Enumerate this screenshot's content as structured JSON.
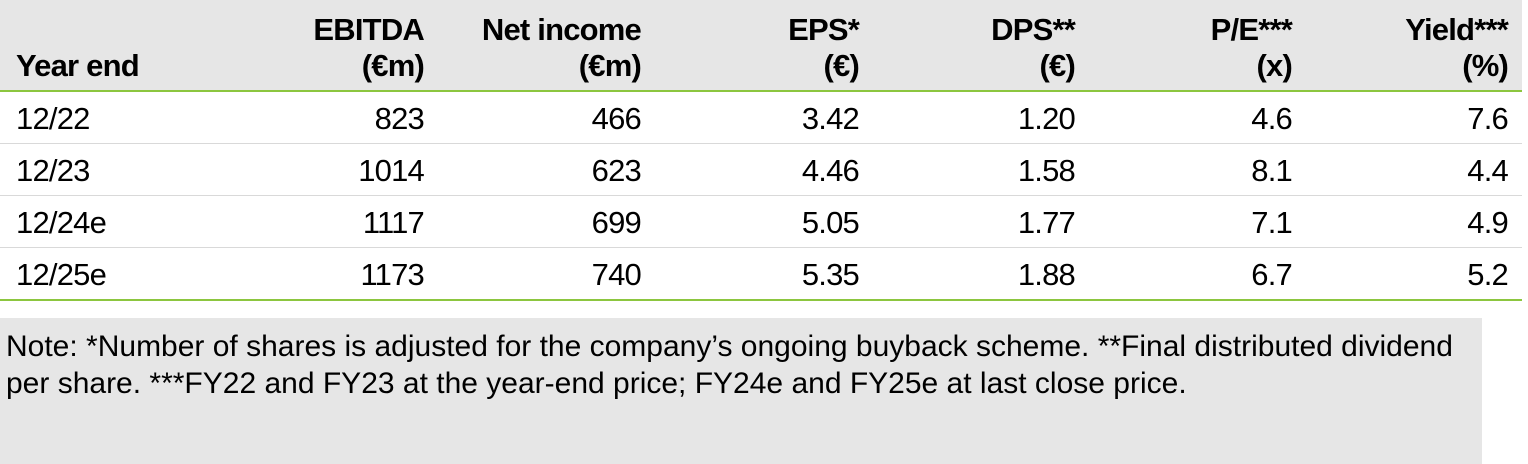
{
  "table": {
    "headers": [
      {
        "line1": "",
        "line2": "Year end"
      },
      {
        "line1": "EBITDA",
        "line2": "(€m)"
      },
      {
        "line1": "Net income",
        "line2": "(€m)"
      },
      {
        "line1": "EPS*",
        "line2": "(€)"
      },
      {
        "line1": "DPS**",
        "line2": "(€)"
      },
      {
        "line1": "P/E***",
        "line2": "(x)"
      },
      {
        "line1": "Yield***",
        "line2": "(%)"
      }
    ],
    "rows": [
      [
        "12/22",
        "823",
        "466",
        "3.42",
        "1.20",
        "4.6",
        "7.6"
      ],
      [
        "12/23",
        "1014",
        "623",
        "4.46",
        "1.58",
        "8.1",
        "4.4"
      ],
      [
        "12/24e",
        "1117",
        "699",
        "5.05",
        "1.77",
        "7.1",
        "4.9"
      ],
      [
        "12/25e",
        "1173",
        "740",
        "5.35",
        "1.88",
        "6.7",
        "5.2"
      ]
    ]
  },
  "note": "Note: *Number of shares is adjusted for the company’s ongoing buyback scheme. **Final distributed dividend per share. ***FY22 and FY23 at the year-end price; FY24e and FY25e at last close price.",
  "colors": {
    "header_bg": "#e6e6e6",
    "rule": "#8cc63f",
    "note_bg": "#e6e6e6"
  }
}
